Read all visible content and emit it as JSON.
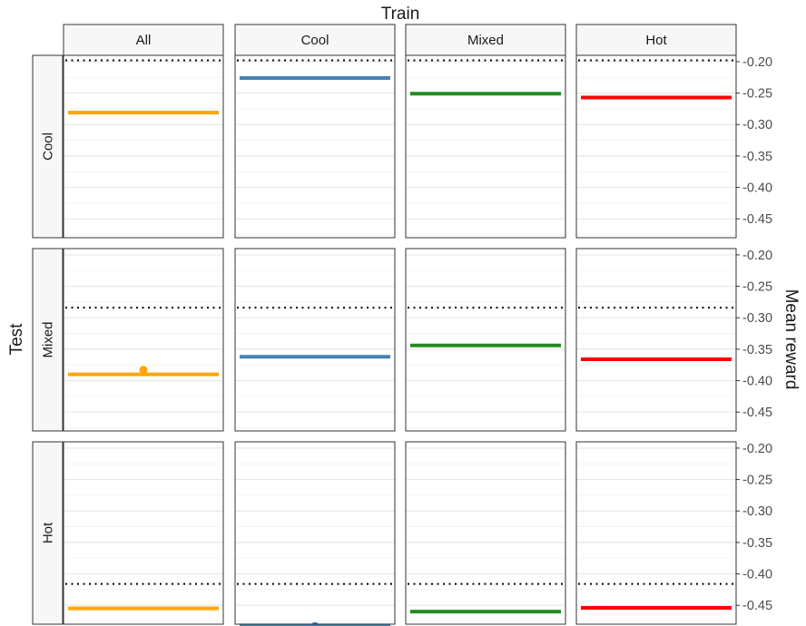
{
  "chart_data": {
    "type": "line",
    "title": "Train",
    "xlabel": "Train",
    "ylabel": "Mean reward",
    "row_label": "Test",
    "columns": [
      "All",
      "Cool",
      "Mixed",
      "Hot"
    ],
    "rows": [
      "Cool",
      "Mixed",
      "Hot"
    ],
    "y_ticks": [
      "-0.20",
      "-0.25",
      "-0.30",
      "-0.35",
      "-0.40",
      "-0.45"
    ],
    "ylim": [
      -0.48,
      -0.19
    ],
    "grid": true,
    "colors": {
      "All": "#FFA500",
      "Cool": "#4682B4",
      "Mixed": "#228B22",
      "Hot": "#FF0000"
    },
    "baselines": {
      "Cool": -0.198,
      "Mixed": -0.284,
      "Hot": -0.416
    },
    "cells": [
      {
        "row": "Cool",
        "col": "All",
        "value": -0.281,
        "point": null
      },
      {
        "row": "Cool",
        "col": "Cool",
        "value": -0.226,
        "point": null
      },
      {
        "row": "Cool",
        "col": "Mixed",
        "value": -0.251,
        "point": null
      },
      {
        "row": "Cool",
        "col": "Hot",
        "value": -0.257,
        "point": null
      },
      {
        "row": "Mixed",
        "col": "All",
        "value": -0.39,
        "point": -0.383
      },
      {
        "row": "Mixed",
        "col": "Cool",
        "value": -0.362,
        "point": null
      },
      {
        "row": "Mixed",
        "col": "Mixed",
        "value": -0.344,
        "point": null
      },
      {
        "row": "Mixed",
        "col": "Hot",
        "value": -0.366,
        "point": null
      },
      {
        "row": "Hot",
        "col": "All",
        "value": -0.455,
        "point": null
      },
      {
        "row": "Hot",
        "col": "Cool",
        "value": -0.482,
        "point": -0.483
      },
      {
        "row": "Hot",
        "col": "Mixed",
        "value": -0.46,
        "point": null
      },
      {
        "row": "Hot",
        "col": "Hot",
        "value": -0.454,
        "point": null
      }
    ]
  }
}
